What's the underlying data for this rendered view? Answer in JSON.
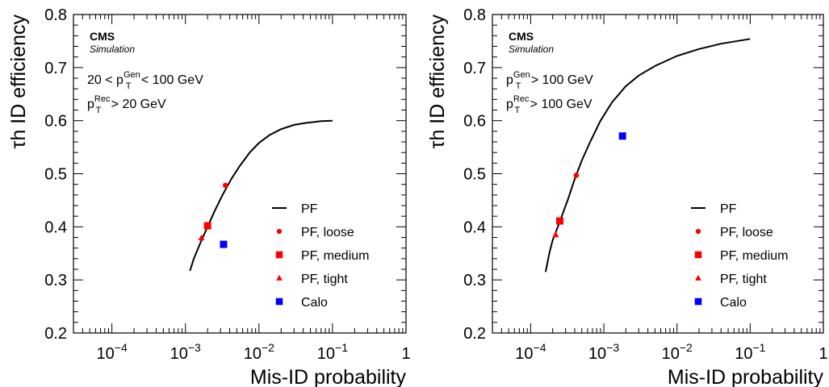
{
  "chart_data": [
    {
      "type": "scatter",
      "xscale": "log",
      "xlim": [
        3e-05,
        1
      ],
      "ylim": [
        0.2,
        0.8
      ],
      "xlabel": "Mis-ID probability",
      "ylabel": "τh ID efficiency",
      "experiment": "CMS",
      "status": "Simulation",
      "cuts": [
        {
          "pre": "20 < ",
          "sup": "Gen",
          "post": " < 100 GeV"
        },
        {
          "pre": "",
          "sup": "Rec",
          "post": " > 20 GeV"
        }
      ],
      "ytick_labels": [
        "0.2",
        "0.3",
        "0.4",
        "0.5",
        "0.6",
        "0.7",
        "0.8"
      ],
      "xtick_labels": [
        {
          "base": "10",
          "exp": "−4"
        },
        {
          "base": "10",
          "exp": "−3"
        },
        {
          "base": "10",
          "exp": "−2"
        },
        {
          "base": "10",
          "exp": "−1"
        },
        {
          "base": "1",
          "exp": ""
        }
      ],
      "curve": {
        "name": "PF",
        "x": [
          0.00115,
          0.0013,
          0.0016,
          0.002,
          0.0025,
          0.0032,
          0.0042,
          0.0055,
          0.0075,
          0.01,
          0.014,
          0.02,
          0.03,
          0.045,
          0.07,
          0.1
        ],
        "y": [
          0.317,
          0.34,
          0.37,
          0.4,
          0.43,
          0.46,
          0.49,
          0.515,
          0.54,
          0.558,
          0.573,
          0.584,
          0.592,
          0.596,
          0.599,
          0.6
        ]
      },
      "points": [
        {
          "name": "PF, loose",
          "marker": "circle",
          "color": "#ff0000",
          "x": 0.0035,
          "y": 0.478
        },
        {
          "name": "PF, medium",
          "marker": "square",
          "color": "#ff0000",
          "x": 0.002,
          "y": 0.402
        },
        {
          "name": "PF, tight",
          "marker": "triangle",
          "color": "#ff0000",
          "x": 0.00165,
          "y": 0.379
        },
        {
          "name": "Calo",
          "marker": "square",
          "color": "#0000ff",
          "x": 0.0033,
          "y": 0.367
        }
      ]
    },
    {
      "type": "scatter",
      "xscale": "log",
      "xlim": [
        3e-05,
        1
      ],
      "ylim": [
        0.2,
        0.8
      ],
      "xlabel": "Mis-ID probability",
      "ylabel": "τh ID efficiency",
      "experiment": "CMS",
      "status": "Simulation",
      "cuts": [
        {
          "pre": "",
          "sup": "Gen",
          "post": " > 100 GeV"
        },
        {
          "pre": "",
          "sup": "Rec",
          "post": " > 100 GeV"
        }
      ],
      "ytick_labels": [
        "0.2",
        "0.3",
        "0.4",
        "0.5",
        "0.6",
        "0.7",
        "0.8"
      ],
      "xtick_labels": [
        {
          "base": "10",
          "exp": "−4"
        },
        {
          "base": "10",
          "exp": "−3"
        },
        {
          "base": "10",
          "exp": "−2"
        },
        {
          "base": "10",
          "exp": "−1"
        },
        {
          "base": "1",
          "exp": ""
        }
      ],
      "curve": {
        "name": "PF",
        "x": [
          0.00016,
          0.00018,
          0.0002,
          0.00025,
          0.00032,
          0.0004,
          0.0005,
          0.00065,
          0.0009,
          0.0013,
          0.002,
          0.003,
          0.005,
          0.01,
          0.02,
          0.04,
          0.1
        ],
        "y": [
          0.315,
          0.35,
          0.375,
          0.41,
          0.45,
          0.49,
          0.525,
          0.56,
          0.6,
          0.635,
          0.665,
          0.685,
          0.703,
          0.722,
          0.735,
          0.745,
          0.754
        ]
      },
      "points": [
        {
          "name": "PF, loose",
          "marker": "circle",
          "color": "#ff0000",
          "x": 0.00042,
          "y": 0.497
        },
        {
          "name": "PF, medium",
          "marker": "square",
          "color": "#ff0000",
          "x": 0.00025,
          "y": 0.411
        },
        {
          "name": "PF, tight",
          "marker": "triangle",
          "color": "#ff0000",
          "x": 0.00022,
          "y": 0.385
        },
        {
          "name": "Calo",
          "marker": "square",
          "color": "#0000ff",
          "x": 0.0018,
          "y": 0.571
        }
      ]
    }
  ]
}
